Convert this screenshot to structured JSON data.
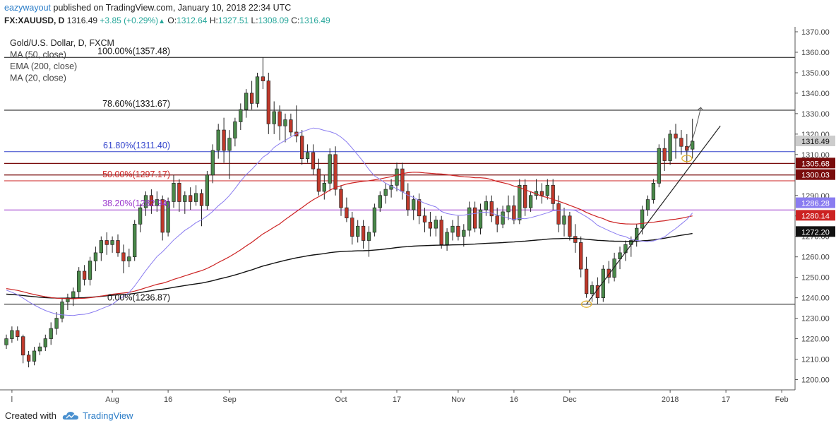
{
  "header": {
    "user": "eazywayout",
    "published_text": "published on TradingView.com, January 10, 2018 22:34 UTC",
    "symbol_tf": "FX:XAUUSD, D",
    "last": "1316.49",
    "change": "+3.85 (+0.29%)",
    "o_label": "O:",
    "o_value": "1312.64",
    "h_label": "H:",
    "h_value": "1327.51",
    "l_label": "L:",
    "l_value": "1308.09",
    "c_label": "C:",
    "c_value": "1316.49"
  },
  "footer": {
    "created_with": "Created with",
    "brand": "TradingView"
  },
  "colors": {
    "up": "#4a8a4a",
    "down": "#c0392b",
    "ma50": "#cc2222",
    "ema200": "#111111",
    "ma20": "#8a7cf0",
    "fib_blue": "#3344cc",
    "fib_purple": "#9933cc",
    "fib_red": "#cc2222",
    "res_dark": "#7a0c0c",
    "badge": "#cccccc",
    "axis_bg": "#ffffff"
  },
  "chart_data": {
    "type": "candlestick",
    "legend": [
      "Gold/U.S. Dollar, D, FXCM",
      "MA (50, close)",
      "EMA (200, close)",
      "MA (20, close)"
    ],
    "ylim": [
      1195,
      1370
    ],
    "xlim": [
      0,
      140
    ],
    "y_ticks": [
      "1200.00",
      "1210.00",
      "1220.00",
      "1230.00",
      "1240.00",
      "1250.00",
      "1260.00",
      "1270.00",
      "1280.00",
      "1290.00",
      "1300.00",
      "1310.00",
      "1320.00",
      "1330.00",
      "1340.00",
      "1350.00",
      "1360.00",
      "1370.00"
    ],
    "x_ticks": [
      {
        "label": "l",
        "i": 1
      },
      {
        "label": "Aug",
        "i": 19
      },
      {
        "label": "16",
        "i": 29
      },
      {
        "label": "Sep",
        "i": 40
      },
      {
        "label": "Oct",
        "i": 60
      },
      {
        "label": "17",
        "i": 70
      },
      {
        "label": "Nov",
        "i": 81
      },
      {
        "label": "16",
        "i": 91
      },
      {
        "label": "Dec",
        "i": 101
      },
      {
        "label": "2018",
        "i": 119
      },
      {
        "label": "17",
        "i": 129
      },
      {
        "label": "Feb",
        "i": 139
      }
    ],
    "candles": [
      [
        1217,
        1222,
        1215,
        1220
      ],
      [
        1220,
        1226,
        1218,
        1224
      ],
      [
        1224,
        1226,
        1219,
        1221
      ],
      [
        1221,
        1222,
        1208,
        1212
      ],
      [
        1212,
        1214,
        1206,
        1209
      ],
      [
        1209,
        1216,
        1207,
        1214
      ],
      [
        1214,
        1218,
        1212,
        1216
      ],
      [
        1216,
        1222,
        1214,
        1220
      ],
      [
        1220,
        1228,
        1217,
        1225
      ],
      [
        1225,
        1233,
        1222,
        1230
      ],
      [
        1230,
        1240,
        1228,
        1238
      ],
      [
        1238,
        1242,
        1234,
        1240
      ],
      [
        1240,
        1245,
        1236,
        1243
      ],
      [
        1243,
        1255,
        1240,
        1253
      ],
      [
        1253,
        1256,
        1246,
        1249
      ],
      [
        1249,
        1260,
        1246,
        1258
      ],
      [
        1258,
        1265,
        1253,
        1262
      ],
      [
        1262,
        1270,
        1258,
        1268
      ],
      [
        1268,
        1272,
        1261,
        1266
      ],
      [
        1266,
        1270,
        1262,
        1268
      ],
      [
        1268,
        1271,
        1260,
        1262
      ],
      [
        1262,
        1266,
        1252,
        1258
      ],
      [
        1258,
        1264,
        1255,
        1260
      ],
      [
        1260,
        1278,
        1258,
        1276
      ],
      [
        1276,
        1286,
        1272,
        1284
      ],
      [
        1284,
        1292,
        1280,
        1290
      ],
      [
        1290,
        1293,
        1281,
        1285
      ],
      [
        1285,
        1292,
        1282,
        1288
      ],
      [
        1288,
        1290,
        1268,
        1272
      ],
      [
        1272,
        1289,
        1270,
        1287
      ],
      [
        1287,
        1300,
        1284,
        1296
      ],
      [
        1296,
        1298,
        1282,
        1287
      ],
      [
        1287,
        1292,
        1281,
        1290
      ],
      [
        1290,
        1294,
        1283,
        1287
      ],
      [
        1287,
        1295,
        1285,
        1291
      ],
      [
        1291,
        1293,
        1275,
        1285
      ],
      [
        1285,
        1302,
        1283,
        1300
      ],
      [
        1300,
        1315,
        1296,
        1312
      ],
      [
        1312,
        1325,
        1308,
        1322
      ],
      [
        1322,
        1328,
        1306,
        1312
      ],
      [
        1312,
        1322,
        1298,
        1318
      ],
      [
        1318,
        1328,
        1314,
        1326
      ],
      [
        1326,
        1335,
        1322,
        1332
      ],
      [
        1332,
        1342,
        1328,
        1340
      ],
      [
        1340,
        1346,
        1332,
        1335
      ],
      [
        1335,
        1350,
        1333,
        1348
      ],
      [
        1348,
        1357.48,
        1342,
        1346
      ],
      [
        1346,
        1350,
        1320,
        1325
      ],
      [
        1325,
        1336,
        1320,
        1331
      ],
      [
        1331,
        1334,
        1317,
        1324
      ],
      [
        1324,
        1330,
        1316,
        1327
      ],
      [
        1327,
        1330,
        1319,
        1321
      ],
      [
        1321,
        1334,
        1316,
        1319
      ],
      [
        1319,
        1322,
        1305,
        1308
      ],
      [
        1308,
        1315,
        1306,
        1311
      ],
      [
        1311,
        1315,
        1300,
        1303
      ],
      [
        1303,
        1308,
        1290,
        1292
      ],
      [
        1292,
        1300,
        1288,
        1296
      ],
      [
        1296,
        1313,
        1292,
        1310
      ],
      [
        1310,
        1314,
        1290,
        1293
      ],
      [
        1293,
        1295,
        1280,
        1284
      ],
      [
        1284,
        1289,
        1277,
        1279
      ],
      [
        1279,
        1282,
        1266,
        1270
      ],
      [
        1270,
        1278,
        1267,
        1275
      ],
      [
        1275,
        1278,
        1264,
        1268
      ],
      [
        1268,
        1275,
        1260,
        1272
      ],
      [
        1272,
        1286,
        1270,
        1284
      ],
      [
        1284,
        1292,
        1282,
        1290
      ],
      [
        1290,
        1296,
        1286,
        1293
      ],
      [
        1293,
        1298,
        1289,
        1295
      ],
      [
        1295,
        1306,
        1292,
        1303
      ],
      [
        1303,
        1306,
        1288,
        1292
      ],
      [
        1292,
        1296,
        1280,
        1283
      ],
      [
        1283,
        1290,
        1278,
        1288
      ],
      [
        1288,
        1291,
        1276,
        1280
      ],
      [
        1280,
        1284,
        1272,
        1277
      ],
      [
        1277,
        1282,
        1270,
        1274
      ],
      [
        1274,
        1280,
        1270,
        1278
      ],
      [
        1278,
        1280,
        1264,
        1266
      ],
      [
        1266,
        1274,
        1263,
        1272
      ],
      [
        1272,
        1278,
        1268,
        1275
      ],
      [
        1275,
        1280,
        1268,
        1270
      ],
      [
        1270,
        1276,
        1265,
        1273
      ],
      [
        1273,
        1287,
        1270,
        1284
      ],
      [
        1284,
        1287,
        1272,
        1274
      ],
      [
        1274,
        1286,
        1271,
        1283
      ],
      [
        1283,
        1290,
        1280,
        1287
      ],
      [
        1287,
        1290,
        1277,
        1280
      ],
      [
        1280,
        1284,
        1272,
        1276
      ],
      [
        1276,
        1285,
        1274,
        1282
      ],
      [
        1282,
        1290,
        1278,
        1285
      ],
      [
        1285,
        1290,
        1276,
        1278
      ],
      [
        1278,
        1298,
        1276,
        1295
      ],
      [
        1295,
        1298,
        1280,
        1284
      ],
      [
        1284,
        1292,
        1282,
        1290
      ],
      [
        1290,
        1298,
        1288,
        1292
      ],
      [
        1292,
        1296,
        1286,
        1290
      ],
      [
        1290,
        1298,
        1288,
        1295
      ],
      [
        1295,
        1298,
        1283,
        1286
      ],
      [
        1286,
        1290,
        1272,
        1276
      ],
      [
        1276,
        1284,
        1270,
        1280
      ],
      [
        1280,
        1282,
        1268,
        1270
      ],
      [
        1270,
        1276,
        1262,
        1267
      ],
      [
        1267,
        1270,
        1250,
        1254
      ],
      [
        1254,
        1260,
        1240,
        1242
      ],
      [
        1242,
        1248,
        1238,
        1246
      ],
      [
        1246,
        1250,
        1236.87,
        1240
      ],
      [
        1240,
        1256,
        1238,
        1254
      ],
      [
        1254,
        1258,
        1247,
        1250
      ],
      [
        1250,
        1262,
        1248,
        1259
      ],
      [
        1259,
        1265,
        1254,
        1262
      ],
      [
        1262,
        1268,
        1258,
        1266
      ],
      [
        1266,
        1270,
        1260,
        1268
      ],
      [
        1268,
        1276,
        1265,
        1274
      ],
      [
        1274,
        1285,
        1271,
        1283
      ],
      [
        1283,
        1290,
        1280,
        1288
      ],
      [
        1288,
        1298,
        1286,
        1296
      ],
      [
        1296,
        1315,
        1294,
        1313
      ],
      [
        1313,
        1318,
        1302,
        1307
      ],
      [
        1307,
        1322,
        1305,
        1320
      ],
      [
        1320,
        1325,
        1308,
        1318
      ],
      [
        1318,
        1322,
        1310,
        1314
      ],
      [
        1314,
        1320,
        1306,
        1312
      ],
      [
        1312.64,
        1327.51,
        1308.09,
        1316.49
      ]
    ],
    "fib_levels": [
      {
        "label": "100.00%(1357.48)",
        "value": 1357.48,
        "color": "#111111"
      },
      {
        "label": "78.60%(1331.67)",
        "value": 1331.67,
        "color": "#111111"
      },
      {
        "label": "61.80%(1311.40)",
        "value": 1311.4,
        "color": "#3344cc"
      },
      {
        "label": "50.00%(1297.17)",
        "value": 1297.17,
        "color": "#cc2222"
      },
      {
        "label": "38.20%(1282.94)",
        "value": 1282.94,
        "color": "#9933cc"
      },
      {
        "label": "0.00%(1236.87)",
        "value": 1236.87,
        "color": "#111111"
      }
    ],
    "resistance_lines": [
      1305.68,
      1300.03
    ],
    "price_badges": [
      {
        "label": "1316.49",
        "value": 1316.49,
        "bg": "#cccccc",
        "fg": "#111111"
      },
      {
        "label": "1305.68",
        "value": 1305.68,
        "bg": "#7a0c0c",
        "fg": "#ffffff"
      },
      {
        "label": "1300.03",
        "value": 1300.03,
        "bg": "#7a0c0c",
        "fg": "#ffffff"
      },
      {
        "label": "1286.28",
        "value": 1286.28,
        "bg": "#8a7cf0",
        "fg": "#ffffff"
      },
      {
        "label": "1280.14",
        "value": 1280.14,
        "bg": "#cc2222",
        "fg": "#ffffff"
      },
      {
        "label": "1272.20",
        "value": 1272.2,
        "bg": "#111111",
        "fg": "#ffffff"
      }
    ],
    "trendline": {
      "from": [
        104,
        1236.87
      ],
      "to": [
        128,
        1324
      ]
    },
    "arrow": {
      "from": [
        122,
        1312
      ],
      "to": [
        124.5,
        1333
      ]
    },
    "markers": [
      [
        104,
        1236.87
      ],
      [
        122,
        1308.09
      ]
    ],
    "ma_end_values": {
      "ma50": 1280.14,
      "ema200": 1272.2,
      "ma20": 1286.28
    }
  }
}
